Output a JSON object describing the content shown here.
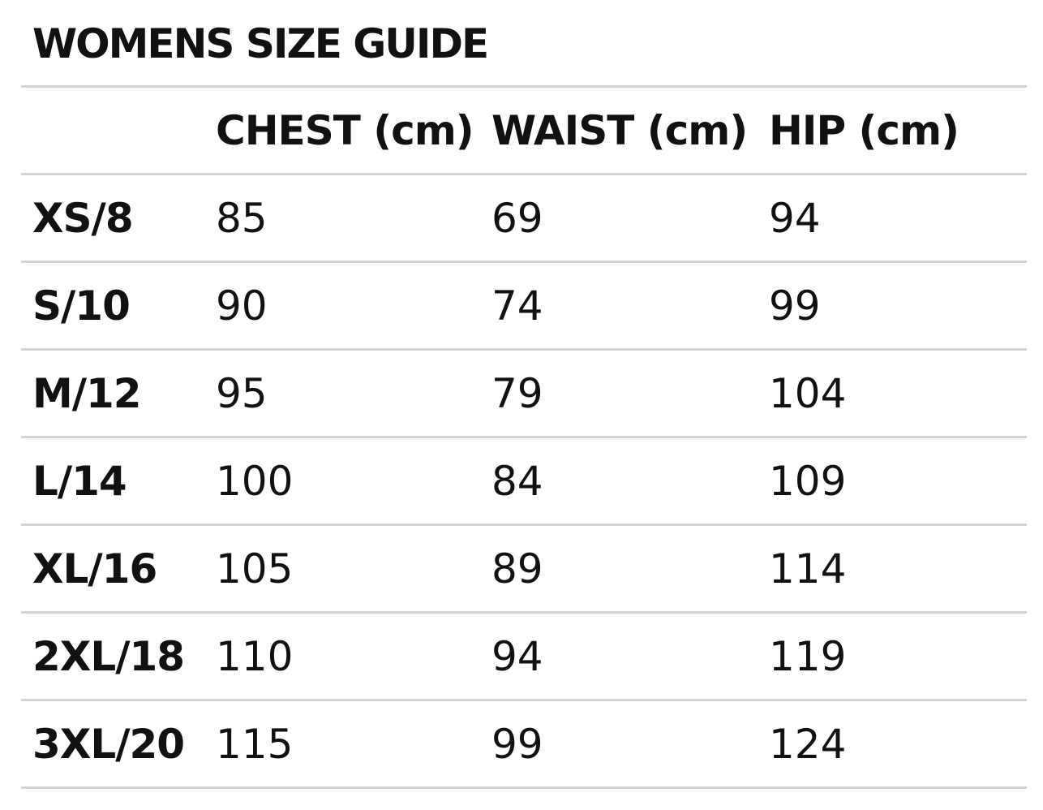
{
  "header": {
    "title": "WOMENS SIZE GUIDE"
  },
  "table": {
    "columns": [
      "CHEST (cm)",
      "WAIST (cm)",
      "HIP (cm)"
    ],
    "rows": [
      [
        "XS/8",
        85,
        69,
        94
      ],
      [
        "S/10",
        90,
        74,
        99
      ],
      [
        "M/12",
        95,
        79,
        104
      ],
      [
        "L/14",
        100,
        84,
        109
      ],
      [
        "XL/16",
        105,
        89,
        114
      ],
      [
        "2XL/18",
        110,
        94,
        119
      ],
      [
        "3XL/20",
        115,
        99,
        124
      ]
    ]
  }
}
